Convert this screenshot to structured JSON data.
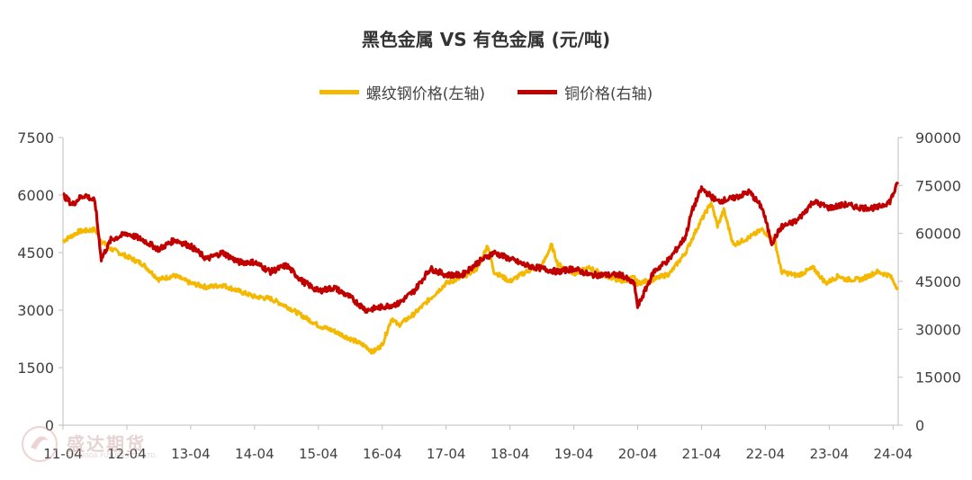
{
  "chart_data": {
    "type": "line",
    "title": "黑色金属 VS 有色金属 (元/吨)",
    "x_tick_labels": [
      "11-04",
      "12-04",
      "13-04",
      "14-04",
      "15-04",
      "16-04",
      "17-04",
      "18-04",
      "19-04",
      "20-04",
      "21-04",
      "22-04",
      "23-04",
      "24-04"
    ],
    "x_range": [
      2011.25,
      2024.33
    ],
    "left_axis": {
      "ylim": [
        0,
        7500
      ],
      "ticks": [
        0,
        1500,
        3000,
        4500,
        6000,
        7500
      ],
      "tick_labels": [
        "0",
        "1500",
        "3000",
        "4500",
        "6000",
        "7500"
      ]
    },
    "right_axis": {
      "ylim": [
        0,
        90000
      ],
      "ticks": [
        0,
        15000,
        30000,
        45000,
        60000,
        75000,
        90000
      ],
      "tick_labels": [
        "0",
        "15000",
        "30000",
        "45000",
        "60000",
        "75000",
        "90000"
      ]
    },
    "legend_position": "top-center",
    "series": [
      {
        "name": "螺纹钢价格(左轴)",
        "axis": "left",
        "color": "#f5b800",
        "x": [
          2011.25,
          2011.5,
          2011.75,
          2011.85,
          2012.0,
          2012.25,
          2012.5,
          2012.75,
          2013.0,
          2013.25,
          2013.5,
          2013.75,
          2014.0,
          2014.25,
          2014.5,
          2014.75,
          2015.0,
          2015.25,
          2015.5,
          2015.75,
          2016.0,
          2016.1,
          2016.25,
          2016.4,
          2016.5,
          2016.75,
          2017.0,
          2017.25,
          2017.5,
          2017.75,
          2017.9,
          2018.0,
          2018.25,
          2018.5,
          2018.75,
          2018.9,
          2019.0,
          2019.25,
          2019.5,
          2019.75,
          2020.0,
          2020.2,
          2020.25,
          2020.5,
          2020.75,
          2021.0,
          2021.2,
          2021.4,
          2021.5,
          2021.6,
          2021.75,
          2022.0,
          2022.2,
          2022.4,
          2022.5,
          2022.75,
          2023.0,
          2023.2,
          2023.4,
          2023.5,
          2023.75,
          2024.0,
          2024.2,
          2024.33
        ],
        "values": [
          4800,
          5050,
          5100,
          4800,
          4600,
          4400,
          4200,
          3800,
          3900,
          3700,
          3600,
          3650,
          3500,
          3350,
          3300,
          3100,
          2850,
          2600,
          2450,
          2250,
          2050,
          1900,
          2100,
          2800,
          2600,
          2900,
          3300,
          3700,
          3850,
          4100,
          4700,
          4000,
          3750,
          4000,
          4150,
          4700,
          4200,
          3950,
          4100,
          3900,
          3750,
          3850,
          3700,
          3800,
          3950,
          4500,
          5200,
          5800,
          5200,
          5600,
          4700,
          4900,
          5100,
          4800,
          4000,
          3900,
          4100,
          3700,
          3900,
          3800,
          3800,
          4000,
          3900,
          3550
        ]
      },
      {
        "name": "铜价格(右轴)",
        "axis": "right",
        "color": "#c00000",
        "x": [
          2011.25,
          2011.4,
          2011.5,
          2011.6,
          2011.75,
          2011.85,
          2012.0,
          2012.25,
          2012.5,
          2012.75,
          2013.0,
          2013.25,
          2013.5,
          2013.75,
          2014.0,
          2014.25,
          2014.5,
          2014.75,
          2015.0,
          2015.25,
          2015.5,
          2015.75,
          2016.0,
          2016.25,
          2016.5,
          2016.75,
          2017.0,
          2017.25,
          2017.5,
          2017.75,
          2018.0,
          2018.25,
          2018.5,
          2018.75,
          2019.0,
          2019.25,
          2019.5,
          2019.75,
          2020.0,
          2020.2,
          2020.25,
          2020.5,
          2020.75,
          2021.0,
          2021.1,
          2021.25,
          2021.5,
          2021.75,
          2022.0,
          2022.2,
          2022.35,
          2022.5,
          2022.75,
          2023.0,
          2023.25,
          2023.5,
          2023.75,
          2024.0,
          2024.2,
          2024.33
        ],
        "values": [
          72000,
          69000,
          71000,
          72000,
          70000,
          52000,
          58000,
          60000,
          58000,
          55000,
          58000,
          56000,
          52000,
          54000,
          51000,
          51000,
          48000,
          50000,
          45000,
          42000,
          43000,
          40000,
          36000,
          37000,
          38000,
          42000,
          49000,
          47000,
          47000,
          51000,
          54000,
          52000,
          50000,
          49000,
          48000,
          49000,
          47000,
          47000,
          47000,
          44000,
          37000,
          48000,
          52000,
          59000,
          67000,
          74000,
          70000,
          71000,
          73000,
          68000,
          57000,
          62000,
          64000,
          70000,
          68000,
          69000,
          68000,
          68000,
          70000,
          76000
        ]
      }
    ]
  },
  "watermark": {
    "name": "盛达期货",
    "sub": "SHENGDA FUTURES CO.,LTD."
  }
}
